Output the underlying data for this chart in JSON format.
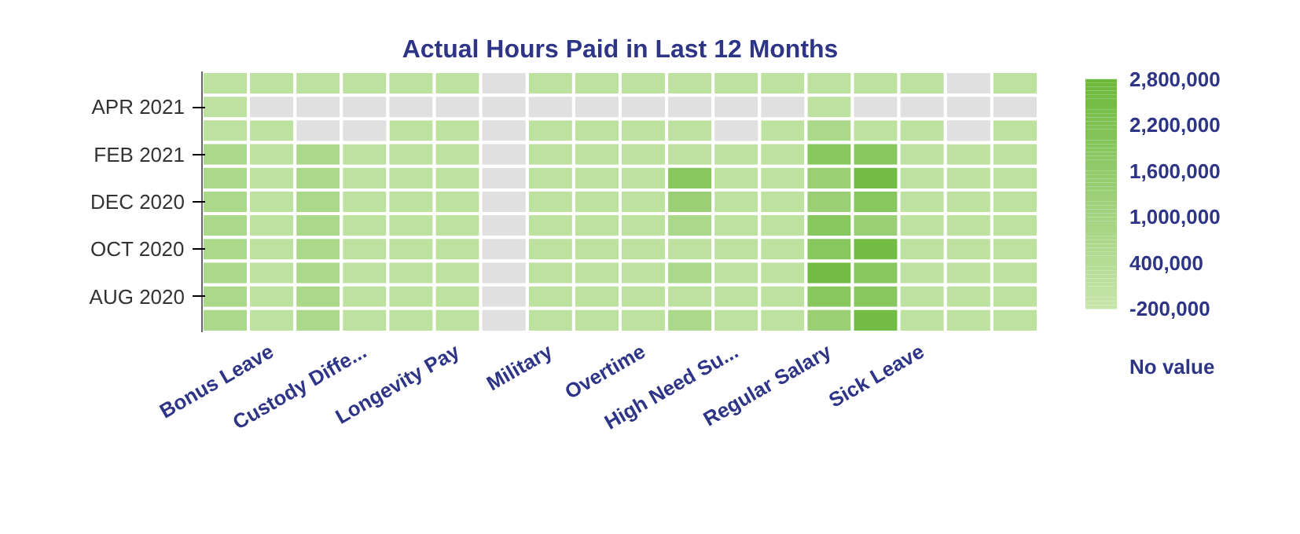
{
  "chart_data": {
    "type": "heatmap",
    "title": "Actual Hours Paid in Last 12 Months",
    "categories": [
      null,
      "Bonus Leave",
      null,
      "Custody Diffe...",
      null,
      "Longevity Pay",
      null,
      "Military",
      null,
      "Overtime",
      null,
      "High Need Su...",
      null,
      "Regular Salary",
      null,
      "Sick Leave",
      null,
      null
    ],
    "y_categories": [
      null,
      "APR 2021",
      null,
      "FEB 2021",
      null,
      "DEC 2020",
      null,
      "OCT 2020",
      null,
      "AUG 2020",
      null
    ],
    "cells": [
      [
        100000,
        100000,
        100000,
        100000,
        100000,
        100000,
        null,
        100000,
        100000,
        100000,
        100000,
        100000,
        100000,
        100000,
        100000,
        100000,
        null,
        100000
      ],
      [
        100000,
        null,
        null,
        null,
        null,
        null,
        null,
        null,
        null,
        null,
        null,
        null,
        null,
        100000,
        null,
        null,
        null,
        null
      ],
      [
        100000,
        100000,
        null,
        null,
        100000,
        100000,
        null,
        100000,
        100000,
        100000,
        100000,
        null,
        100000,
        700000,
        100000,
        100000,
        null,
        100000
      ],
      [
        700000,
        100000,
        700000,
        100000,
        100000,
        100000,
        null,
        100000,
        100000,
        100000,
        100000,
        100000,
        100000,
        1900000,
        1900000,
        100000,
        100000,
        100000
      ],
      [
        700000,
        100000,
        700000,
        100000,
        100000,
        100000,
        null,
        100000,
        100000,
        100000,
        1900000,
        100000,
        100000,
        1300000,
        2500000,
        100000,
        100000,
        100000
      ],
      [
        700000,
        100000,
        700000,
        100000,
        100000,
        100000,
        null,
        100000,
        100000,
        100000,
        1300000,
        100000,
        100000,
        1300000,
        1900000,
        100000,
        100000,
        100000
      ],
      [
        700000,
        100000,
        700000,
        100000,
        100000,
        100000,
        null,
        100000,
        100000,
        100000,
        700000,
        100000,
        100000,
        1900000,
        1300000,
        100000,
        100000,
        100000
      ],
      [
        700000,
        100000,
        700000,
        100000,
        100000,
        100000,
        null,
        100000,
        100000,
        100000,
        100000,
        100000,
        100000,
        1900000,
        2500000,
        100000,
        100000,
        100000
      ],
      [
        700000,
        100000,
        700000,
        100000,
        100000,
        100000,
        null,
        100000,
        100000,
        100000,
        700000,
        100000,
        100000,
        2500000,
        1900000,
        100000,
        100000,
        100000
      ],
      [
        700000,
        100000,
        700000,
        100000,
        100000,
        100000,
        null,
        100000,
        100000,
        100000,
        100000,
        100000,
        100000,
        1900000,
        1900000,
        100000,
        100000,
        100000
      ],
      [
        700000,
        100000,
        700000,
        100000,
        100000,
        100000,
        null,
        100000,
        100000,
        100000,
        700000,
        100000,
        100000,
        1300000,
        2500000,
        100000,
        100000,
        100000
      ]
    ],
    "clim": [
      -200000,
      2800000
    ],
    "cticks": [
      {
        "value": -200000,
        "label": "-200,000"
      },
      {
        "value": 400000,
        "label": "400,000"
      },
      {
        "value": 1000000,
        "label": "1,000,000"
      },
      {
        "value": 1600000,
        "label": "1,600,000"
      },
      {
        "value": 2200000,
        "label": "2,200,000"
      },
      {
        "value": 2800000,
        "label": "2,800,000"
      }
    ],
    "colors": [
      "#c6e5aa",
      "#b0da8f",
      "#9bcf76",
      "#84c45a",
      "#6cb93a"
    ],
    "annotations": [
      "No value"
    ]
  }
}
